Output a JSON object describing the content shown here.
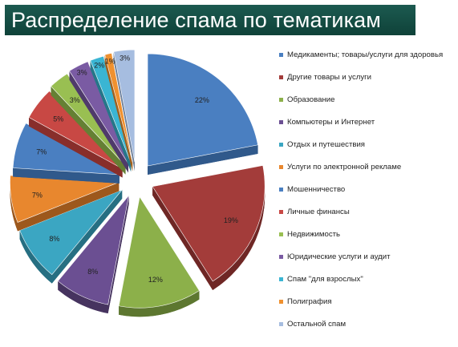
{
  "title": "Распределение спама по тематикам",
  "chart_data": {
    "type": "pie",
    "title": "Распределение спама по тематикам",
    "legend_position": "right",
    "categories": [
      "Медикаменты; товары/услуги для здоровья",
      "Другие товары и услуги",
      "Образование",
      "Компьютеры и Интернет",
      "Отдых и путешествия",
      "Услуги по электронной рекламе",
      "Мошенничество",
      "Личные финансы",
      "Недвижимость",
      "Юридические услуги и аудит",
      "Спам \"для взрослых\"",
      "Полиграфия",
      "Остальной спам"
    ],
    "values": [
      22,
      19,
      12,
      8,
      8,
      7,
      7,
      5,
      3,
      3,
      2,
      1,
      3
    ],
    "value_labels": [
      "22%",
      "19%",
      "12%",
      "8%",
      "8%",
      "7%",
      "7%",
      "5%",
      "3%",
      "3%",
      "2%",
      "1%",
      "3%"
    ],
    "colors": [
      "#4a7fc1",
      "#a33c3a",
      "#8cb04a",
      "#6b4f92",
      "#3ba6c2",
      "#e8872e",
      "#4a7fc1",
      "#c84844",
      "#99bf52",
      "#7a5ba3",
      "#3ab5d3",
      "#f0912f",
      "#a6bde0"
    ],
    "side_colors": [
      "#30598b",
      "#6f2725",
      "#5d7730",
      "#46335f",
      "#266f82",
      "#9d581c",
      "#30598b",
      "#882e2b",
      "#658034",
      "#4f3a6b",
      "#257789",
      "#a1601d",
      "#6d7f99"
    ]
  }
}
